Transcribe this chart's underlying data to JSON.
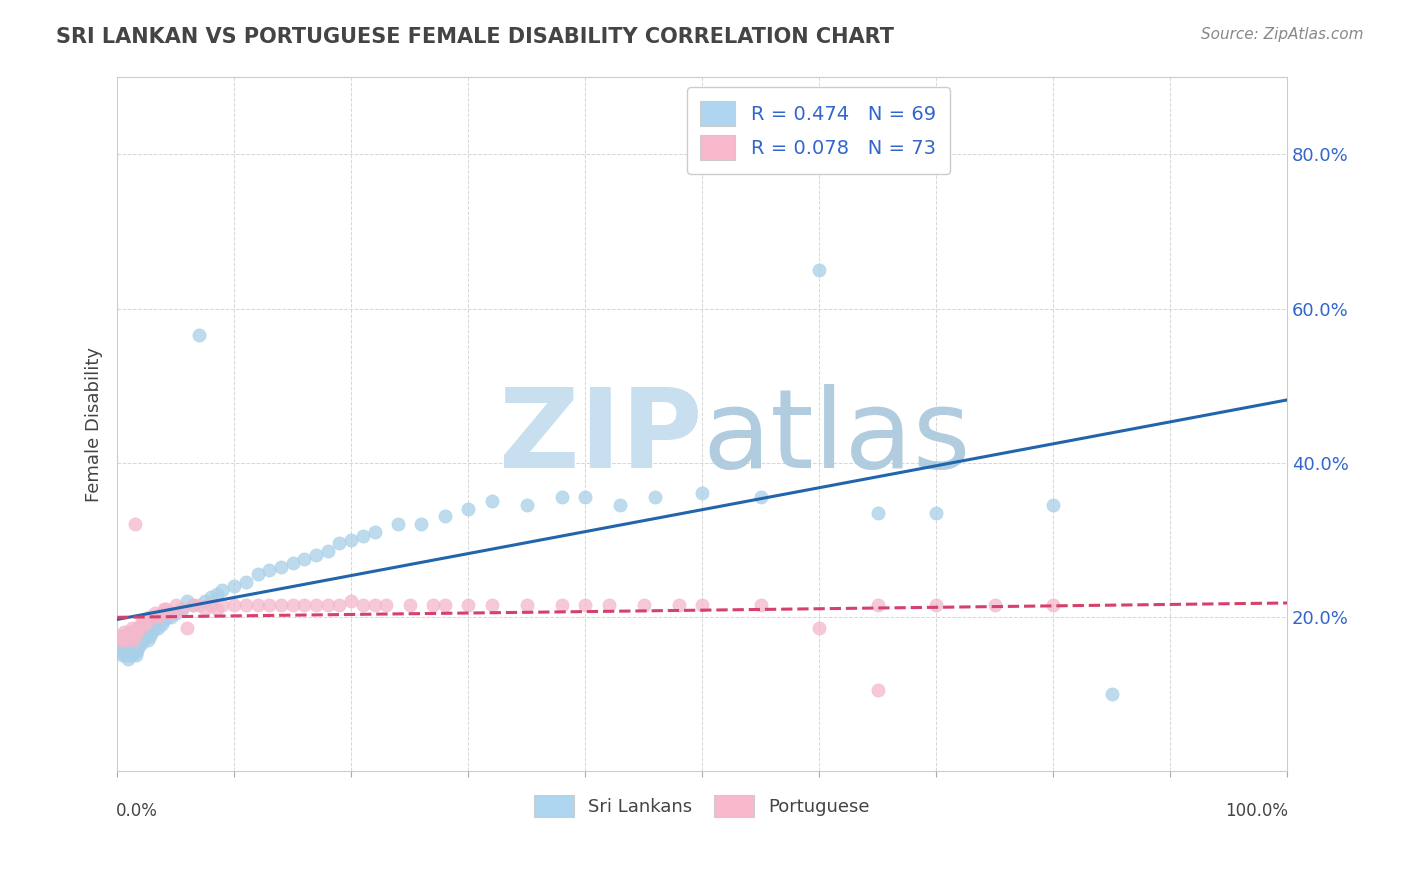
{
  "title": "SRI LANKAN VS PORTUGUESE FEMALE DISABILITY CORRELATION CHART",
  "source": "Source: ZipAtlas.com",
  "ylabel": "Female Disability",
  "legend_bottom": [
    "Sri Lankans",
    "Portuguese"
  ],
  "series": [
    {
      "name": "Sri Lankans",
      "R": 0.474,
      "N": 69,
      "color": "#a8d0e8",
      "line_color": "#2166ac",
      "line_style": "-",
      "x": [
        0.002,
        0.003,
        0.004,
        0.005,
        0.006,
        0.007,
        0.008,
        0.009,
        0.01,
        0.011,
        0.012,
        0.013,
        0.014,
        0.015,
        0.016,
        0.017,
        0.018,
        0.019,
        0.02,
        0.022,
        0.024,
        0.026,
        0.028,
        0.03,
        0.032,
        0.035,
        0.038,
        0.04,
        0.043,
        0.046,
        0.05,
        0.055,
        0.06,
        0.065,
        0.07,
        0.075,
        0.08,
        0.085,
        0.09,
        0.1,
        0.11,
        0.12,
        0.13,
        0.14,
        0.15,
        0.16,
        0.17,
        0.18,
        0.19,
        0.2,
        0.21,
        0.22,
        0.24,
        0.26,
        0.28,
        0.3,
        0.32,
        0.35,
        0.38,
        0.4,
        0.43,
        0.46,
        0.5,
        0.55,
        0.6,
        0.65,
        0.7,
        0.8,
        0.85
      ],
      "y": [
        0.155,
        0.16,
        0.15,
        0.155,
        0.16,
        0.15,
        0.155,
        0.145,
        0.15,
        0.155,
        0.16,
        0.15,
        0.155,
        0.16,
        0.15,
        0.155,
        0.16,
        0.165,
        0.165,
        0.17,
        0.175,
        0.17,
        0.175,
        0.18,
        0.185,
        0.185,
        0.19,
        0.195,
        0.2,
        0.2,
        0.205,
        0.21,
        0.22,
        0.215,
        0.565,
        0.22,
        0.225,
        0.23,
        0.235,
        0.24,
        0.245,
        0.255,
        0.26,
        0.265,
        0.27,
        0.275,
        0.28,
        0.285,
        0.295,
        0.3,
        0.305,
        0.31,
        0.32,
        0.32,
        0.33,
        0.34,
        0.35,
        0.345,
        0.355,
        0.355,
        0.345,
        0.355,
        0.36,
        0.355,
        0.65,
        0.335,
        0.335,
        0.345,
        0.1
      ]
    },
    {
      "name": "Portuguese",
      "R": 0.078,
      "N": 73,
      "color": "#f4b8cc",
      "line_color": "#d6416b",
      "line_style": "--",
      "x": [
        0.001,
        0.002,
        0.003,
        0.004,
        0.005,
        0.006,
        0.007,
        0.008,
        0.009,
        0.01,
        0.011,
        0.012,
        0.013,
        0.014,
        0.015,
        0.016,
        0.017,
        0.018,
        0.019,
        0.02,
        0.022,
        0.025,
        0.027,
        0.03,
        0.032,
        0.035,
        0.038,
        0.04,
        0.042,
        0.045,
        0.048,
        0.05,
        0.055,
        0.06,
        0.065,
        0.07,
        0.075,
        0.08,
        0.085,
        0.09,
        0.1,
        0.11,
        0.12,
        0.13,
        0.14,
        0.15,
        0.16,
        0.17,
        0.18,
        0.19,
        0.2,
        0.21,
        0.22,
        0.23,
        0.25,
        0.27,
        0.28,
        0.3,
        0.32,
        0.35,
        0.38,
        0.4,
        0.42,
        0.45,
        0.48,
        0.5,
        0.55,
        0.6,
        0.65,
        0.7,
        0.75,
        0.8,
        0.65
      ],
      "y": [
        0.17,
        0.175,
        0.175,
        0.17,
        0.175,
        0.18,
        0.175,
        0.175,
        0.17,
        0.18,
        0.175,
        0.18,
        0.185,
        0.17,
        0.32,
        0.18,
        0.185,
        0.18,
        0.185,
        0.19,
        0.195,
        0.19,
        0.2,
        0.2,
        0.205,
        0.2,
        0.205,
        0.21,
        0.21,
        0.205,
        0.205,
        0.215,
        0.21,
        0.185,
        0.215,
        0.215,
        0.21,
        0.215,
        0.21,
        0.215,
        0.215,
        0.215,
        0.215,
        0.215,
        0.215,
        0.215,
        0.215,
        0.215,
        0.215,
        0.215,
        0.22,
        0.215,
        0.215,
        0.215,
        0.215,
        0.215,
        0.215,
        0.215,
        0.215,
        0.215,
        0.215,
        0.215,
        0.215,
        0.215,
        0.215,
        0.215,
        0.215,
        0.185,
        0.215,
        0.215,
        0.215,
        0.215,
        0.105
      ]
    }
  ],
  "xlim": [
    0.0,
    1.0
  ],
  "ylim": [
    0.0,
    0.9
  ],
  "ytick_values": [
    0.2,
    0.4,
    0.6,
    0.8
  ],
  "ytick_labels": [
    "20.0%",
    "40.0%",
    "60.0%",
    "80.0%"
  ],
  "background_color": "#ffffff",
  "grid_color": "#cccccc",
  "watermark_zip_color": "#c8dff0",
  "watermark_atlas_color": "#b0ccde",
  "title_color": "#444444",
  "tick_label_color": "#3366cc",
  "source_color": "#888888",
  "legend_text_color": "#3366cc"
}
